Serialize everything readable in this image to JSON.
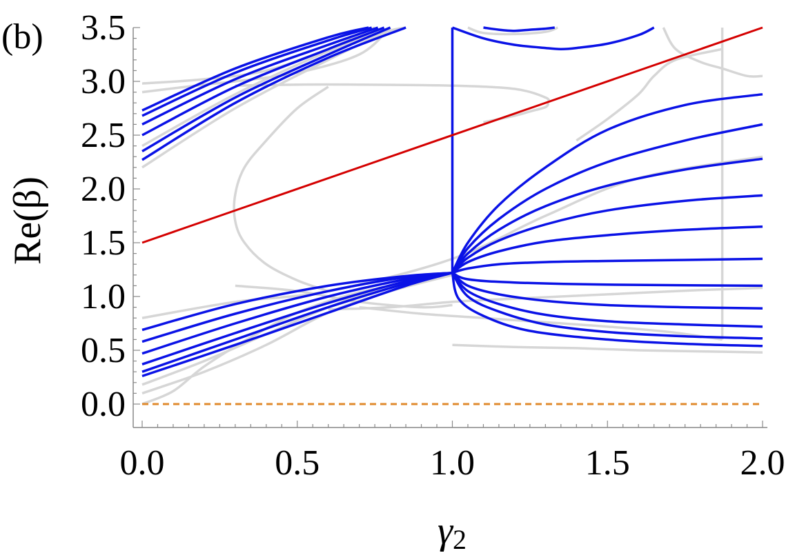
{
  "chart_data": {
    "type": "line",
    "panel_label": "(b)",
    "xlabel": "γ",
    "xlabel_sub": "2",
    "ylabel": "Re(β)",
    "xlim": [
      0.0,
      2.0
    ],
    "ylim": [
      -0.2,
      3.5
    ],
    "x_ticks": [
      "0.0",
      "0.5",
      "1.0",
      "1.5",
      "2.0"
    ],
    "x_tick_values": [
      0.0,
      0.5,
      1.0,
      1.5,
      2.0
    ],
    "y_ticks": [
      "0.0",
      "0.5",
      "1.0",
      "1.5",
      "2.0",
      "2.5",
      "3.0",
      "3.5"
    ],
    "y_tick_values": [
      0.0,
      0.5,
      1.0,
      1.5,
      2.0,
      2.5,
      3.0,
      3.5
    ],
    "colors": {
      "blue": "#0a12e6",
      "red": "#d40000",
      "gray": "#d6d6d6",
      "orange": "#e08a2c"
    },
    "series": [
      {
        "color": "red",
        "style": "solid",
        "x": [
          0.0,
          2.0
        ],
        "y": [
          1.5,
          3.5
        ]
      },
      {
        "color": "orange",
        "style": "dashed",
        "x": [
          0.0,
          2.0
        ],
        "y": [
          0.0,
          0.0
        ]
      },
      {
        "color": "blue",
        "style": "solid",
        "x": [
          1.0,
          1.0
        ],
        "y": [
          1.22,
          3.5
        ]
      },
      {
        "color": "blue",
        "style": "solid",
        "x": [
          0.0,
          0.3,
          0.6,
          0.85,
          1.0
        ],
        "y": [
          0.26,
          0.55,
          0.85,
          1.1,
          1.22
        ]
      },
      {
        "color": "blue",
        "style": "solid",
        "x": [
          0.0,
          0.3,
          0.6,
          0.85,
          1.0
        ],
        "y": [
          0.3,
          0.6,
          0.9,
          1.12,
          1.22
        ]
      },
      {
        "color": "blue",
        "style": "solid",
        "x": [
          0.0,
          0.3,
          0.6,
          0.85,
          1.0
        ],
        "y": [
          0.37,
          0.66,
          0.94,
          1.14,
          1.22
        ]
      },
      {
        "color": "blue",
        "style": "solid",
        "x": [
          0.0,
          0.3,
          0.6,
          0.85,
          1.0
        ],
        "y": [
          0.47,
          0.75,
          1.0,
          1.16,
          1.22
        ]
      },
      {
        "color": "blue",
        "style": "solid",
        "x": [
          0.0,
          0.3,
          0.6,
          0.85,
          1.0
        ],
        "y": [
          0.58,
          0.84,
          1.05,
          1.18,
          1.22
        ]
      },
      {
        "color": "blue",
        "style": "solid",
        "x": [
          0.0,
          0.3,
          0.6,
          0.85,
          1.0
        ],
        "y": [
          0.69,
          0.93,
          1.1,
          1.19,
          1.22
        ]
      },
      {
        "color": "blue",
        "style": "solid",
        "x": [
          0.0,
          0.3,
          0.6,
          0.85
        ],
        "y": [
          2.27,
          2.8,
          3.22,
          3.5
        ]
      },
      {
        "color": "blue",
        "style": "solid",
        "x": [
          0.0,
          0.3,
          0.6,
          0.8
        ],
        "y": [
          2.35,
          2.85,
          3.25,
          3.5
        ]
      },
      {
        "color": "blue",
        "style": "solid",
        "x": [
          0.0,
          0.3,
          0.6,
          0.78
        ],
        "y": [
          2.5,
          2.95,
          3.3,
          3.5
        ]
      },
      {
        "color": "blue",
        "style": "solid",
        "x": [
          0.0,
          0.3,
          0.6,
          0.76
        ],
        "y": [
          2.6,
          3.02,
          3.34,
          3.5
        ]
      },
      {
        "color": "blue",
        "style": "solid",
        "x": [
          0.0,
          0.3,
          0.6,
          0.74
        ],
        "y": [
          2.68,
          3.08,
          3.38,
          3.5
        ]
      },
      {
        "color": "blue",
        "style": "solid",
        "x": [
          0.0,
          0.3,
          0.6,
          0.73
        ],
        "y": [
          2.73,
          3.12,
          3.41,
          3.5
        ]
      },
      {
        "color": "blue",
        "style": "solid",
        "x": [
          1.0,
          1.05,
          1.15,
          1.3,
          1.5,
          1.75,
          2.0
        ],
        "y": [
          1.22,
          1.5,
          1.85,
          2.2,
          2.55,
          2.78,
          2.88
        ]
      },
      {
        "color": "blue",
        "style": "solid",
        "x": [
          1.0,
          1.05,
          1.15,
          1.3,
          1.5,
          1.75,
          2.0
        ],
        "y": [
          1.22,
          1.45,
          1.72,
          2.0,
          2.25,
          2.45,
          2.6
        ]
      },
      {
        "color": "blue",
        "style": "solid",
        "x": [
          1.0,
          1.05,
          1.15,
          1.3,
          1.5,
          1.75,
          2.0
        ],
        "y": [
          1.22,
          1.4,
          1.62,
          1.84,
          2.03,
          2.18,
          2.28
        ]
      },
      {
        "color": "blue",
        "style": "solid",
        "x": [
          1.0,
          1.05,
          1.15,
          1.3,
          1.5,
          1.75,
          2.0
        ],
        "y": [
          1.22,
          1.36,
          1.52,
          1.67,
          1.8,
          1.89,
          1.94
        ]
      },
      {
        "color": "blue",
        "style": "solid",
        "x": [
          1.0,
          1.05,
          1.15,
          1.3,
          1.5,
          1.75,
          2.0
        ],
        "y": [
          1.22,
          1.32,
          1.42,
          1.51,
          1.57,
          1.62,
          1.65
        ]
      },
      {
        "color": "blue",
        "style": "solid",
        "x": [
          1.0,
          1.05,
          1.15,
          1.3,
          1.5,
          1.75,
          2.0
        ],
        "y": [
          1.22,
          1.26,
          1.3,
          1.32,
          1.33,
          1.34,
          1.35
        ]
      },
      {
        "color": "blue",
        "style": "solid",
        "x": [
          1.0,
          1.05,
          1.2,
          1.5,
          2.0
        ],
        "y": [
          1.22,
          1.16,
          1.13,
          1.11,
          1.1
        ]
      },
      {
        "color": "blue",
        "style": "solid",
        "x": [
          1.0,
          1.05,
          1.15,
          1.3,
          1.5,
          1.75,
          2.0
        ],
        "y": [
          1.22,
          1.1,
          1.02,
          0.96,
          0.92,
          0.9,
          0.89
        ]
      },
      {
        "color": "blue",
        "style": "solid",
        "x": [
          1.0,
          1.05,
          1.15,
          1.3,
          1.5,
          1.75,
          2.0
        ],
        "y": [
          1.22,
          1.05,
          0.93,
          0.83,
          0.77,
          0.74,
          0.72
        ]
      },
      {
        "color": "blue",
        "style": "solid",
        "x": [
          1.0,
          1.05,
          1.15,
          1.3,
          1.5,
          1.75,
          2.0
        ],
        "y": [
          1.22,
          1.0,
          0.86,
          0.74,
          0.67,
          0.63,
          0.61
        ]
      },
      {
        "color": "blue",
        "style": "solid",
        "x": [
          1.0,
          1.02,
          1.1,
          1.25,
          1.5,
          1.75,
          2.0
        ],
        "y": [
          1.22,
          0.98,
          0.82,
          0.68,
          0.6,
          0.56,
          0.54
        ]
      },
      {
        "color": "blue",
        "style": "solid",
        "x": [
          1.0,
          1.1,
          1.2,
          1.3,
          1.35,
          1.4,
          1.5,
          1.6,
          1.65
        ],
        "y": [
          3.5,
          3.4,
          3.34,
          3.31,
          3.3,
          3.31,
          3.35,
          3.43,
          3.5
        ]
      },
      {
        "color": "blue",
        "style": "solid",
        "x": [
          1.1,
          1.15,
          1.2,
          1.25,
          1.3,
          1.33
        ],
        "y": [
          3.5,
          3.48,
          3.47,
          3.48,
          3.49,
          3.5
        ]
      },
      {
        "color": "gray",
        "style": "solid",
        "x": [
          0.0,
          0.3,
          0.6,
          0.78,
          0.85
        ],
        "y": [
          2.2,
          2.75,
          3.2,
          3.45,
          3.5
        ]
      },
      {
        "color": "gray",
        "style": "solid",
        "x": [
          0.0,
          0.3,
          0.6,
          0.8
        ],
        "y": [
          2.4,
          2.88,
          3.28,
          3.5
        ]
      },
      {
        "color": "gray",
        "style": "solid",
        "x": [
          0.0,
          0.2,
          0.3,
          0.5,
          0.7,
          0.8
        ],
        "y": [
          2.9,
          2.97,
          3.0,
          3.08,
          3.25,
          3.5
        ]
      },
      {
        "color": "gray",
        "style": "solid",
        "x": [
          0.0,
          0.2,
          0.4,
          0.6,
          0.75
        ],
        "y": [
          2.98,
          3.02,
          3.1,
          3.3,
          3.5
        ]
      },
      {
        "color": "gray",
        "style": "solid",
        "x": [
          0.3,
          0.5,
          0.7,
          1.0,
          1.2,
          1.3,
          1.31
        ],
        "y": [
          2.96,
          2.97,
          2.97,
          2.96,
          2.93,
          2.85,
          2.8
        ]
      },
      {
        "color": "gray",
        "style": "solid",
        "x": [
          1.31,
          1.3,
          1.25,
          1.2,
          1.1
        ],
        "y": [
          2.8,
          2.76,
          2.72,
          2.68,
          2.62
        ]
      },
      {
        "color": "gray",
        "style": "solid",
        "x": [
          0.6,
          0.5,
          0.4,
          0.33,
          0.3,
          0.3,
          0.33,
          0.4,
          0.5,
          0.6
        ],
        "y": [
          2.95,
          2.75,
          2.45,
          2.2,
          1.95,
          1.7,
          1.5,
          1.3,
          1.15,
          1.05
        ]
      },
      {
        "color": "gray",
        "style": "solid",
        "x": [
          0.0,
          0.3,
          0.6,
          1.0,
          1.3,
          1.6,
          2.0
        ],
        "y": [
          0.8,
          0.95,
          1.05,
          1.35,
          1.75,
          2.1,
          2.3
        ]
      },
      {
        "color": "gray",
        "style": "solid",
        "x": [
          0.0,
          0.2,
          0.4,
          0.6,
          0.8,
          1.0
        ],
        "y": [
          0.1,
          0.3,
          0.55,
          0.85,
          1.05,
          1.2
        ]
      },
      {
        "color": "gray",
        "style": "solid",
        "x": [
          0.0,
          0.2,
          0.4,
          0.6,
          0.8,
          1.0
        ],
        "y": [
          0.18,
          0.4,
          0.65,
          0.9,
          1.1,
          1.22
        ]
      },
      {
        "color": "gray",
        "style": "solid",
        "x": [
          0.0,
          0.1,
          0.2,
          0.35,
          0.5,
          0.65,
          0.8,
          1.0
        ],
        "y": [
          0.0,
          0.12,
          0.35,
          0.62,
          0.85,
          1.0,
          1.1,
          1.2
        ]
      },
      {
        "color": "gray",
        "style": "solid",
        "x": [
          0.3,
          0.5,
          0.7,
          0.9,
          1.0
        ],
        "y": [
          1.1,
          1.05,
          0.95,
          0.9,
          0.92
        ]
      },
      {
        "color": "gray",
        "style": "solid",
        "x": [
          0.6,
          0.8,
          1.0,
          1.2,
          1.5,
          1.8,
          2.0
        ],
        "y": [
          0.88,
          0.9,
          0.95,
          0.98,
          1.02,
          1.06,
          1.08
        ]
      },
      {
        "color": "gray",
        "style": "solid",
        "x": [
          0.7,
          0.9,
          1.1,
          1.3,
          1.5,
          1.7,
          1.87
        ],
        "y": [
          0.9,
          0.84,
          0.8,
          0.76,
          0.72,
          0.67,
          0.6
        ]
      },
      {
        "color": "gray",
        "style": "solid",
        "x": [
          1.0,
          1.2,
          1.4,
          1.6,
          1.8,
          2.0
        ],
        "y": [
          0.55,
          0.53,
          0.52,
          0.5,
          0.49,
          0.48
        ]
      },
      {
        "color": "gray",
        "style": "solid",
        "x": [
          1.87,
          1.87
        ],
        "y": [
          0.6,
          3.5
        ]
      },
      {
        "color": "gray",
        "style": "solid",
        "x": [
          1.68,
          1.72,
          1.8,
          1.87,
          1.95,
          2.0
        ],
        "y": [
          3.5,
          3.3,
          3.18,
          3.12,
          3.05,
          3.05
        ]
      },
      {
        "color": "gray",
        "style": "solid",
        "x": [
          1.4,
          1.5,
          1.6,
          1.65,
          1.72,
          1.87
        ],
        "y": [
          2.45,
          2.65,
          2.88,
          3.05,
          3.2,
          3.3
        ]
      },
      {
        "color": "gray",
        "style": "solid",
        "x": [
          1.05,
          1.1,
          1.2,
          1.3,
          1.34
        ],
        "y": [
          3.5,
          3.45,
          3.44,
          3.46,
          3.5
        ]
      }
    ]
  }
}
